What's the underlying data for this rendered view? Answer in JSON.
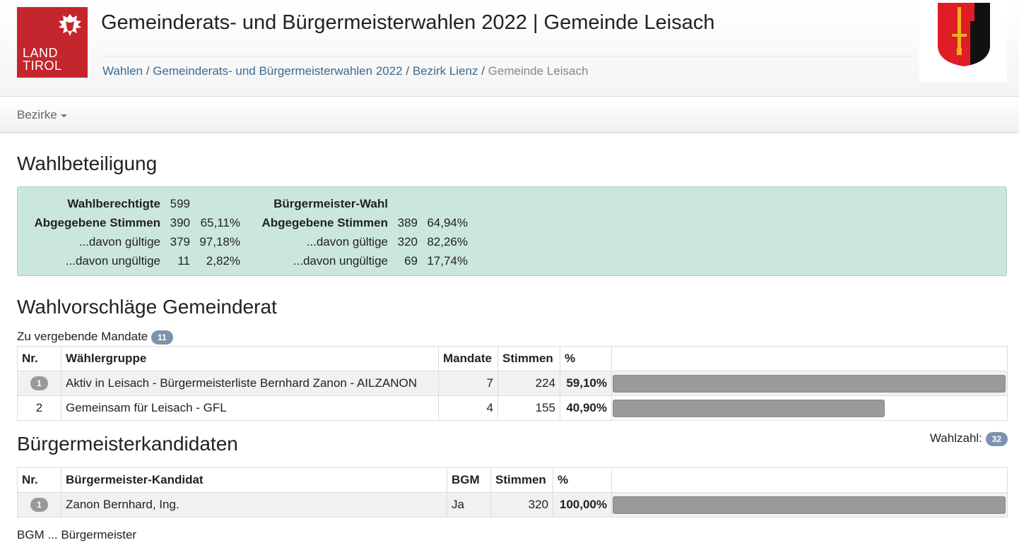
{
  "header": {
    "logo": [
      "LAND",
      "TIROL"
    ],
    "title": "Gemeinderats- und Bürgermeisterwahlen 2022 | Gemeinde Leisach",
    "breadcrumb": [
      "Wahlen",
      "Gemeinderats- und Bürgermeisterwahlen 2022",
      "Bezirk Lienz",
      "Gemeinde Leisach"
    ],
    "breadcrumb_separator": "/"
  },
  "nav": {
    "menu": "Bezirke"
  },
  "turnout": {
    "title": "Wahlbeteiligung",
    "council": [
      {
        "label": "Wahlberechtigte",
        "value": 599
      },
      {
        "label": "Abgegebene Stimmen",
        "value": 390,
        "percent": "65,11%"
      },
      {
        "label": "...davon gültige",
        "value": 379,
        "percent": "97,18%"
      },
      {
        "label": "...davon ungültige",
        "value": 11,
        "percent": "2,82%"
      }
    ],
    "mayor": {
      "title": "Bürgermeister-Wahl",
      "rows": [
        {
          "label": "Abgegebene Stimmen",
          "value": 389,
          "percent": "64,94%"
        },
        {
          "label": "...davon gültige",
          "value": 320,
          "percent": "82,26%"
        },
        {
          "label": "...davon ungültige",
          "value": 69,
          "percent": "17,74%"
        }
      ]
    }
  },
  "council": {
    "title": "Wahlvorschläge Gemeinderat",
    "mandates_label": "Zu vergebende Mandate",
    "mandates": 11,
    "columns": [
      "Nr.",
      "Wählergruppe",
      "Mandate",
      "Stimmen",
      "%"
    ],
    "rows": [
      {
        "nr": 1,
        "name": "Aktiv in Leisach - Bürgermeisterliste Bernhard Zanon - AILZANON",
        "mandates": 7,
        "votes": 224,
        "percent": 59.1,
        "percent_label": "59,10%"
      },
      {
        "nr": 2,
        "name": "Gemeinsam für Leisach - GFL",
        "mandates": 4,
        "votes": 155,
        "percent": 40.9,
        "percent_label": "40,90%"
      }
    ]
  },
  "mayor": {
    "title": "Bürgermeisterkandidaten",
    "quota_label": "Wahlzahl:",
    "quota": 32,
    "columns": [
      "Nr.",
      "Bürgermeister-Kandidat",
      "BGM",
      "Stimmen",
      "%"
    ],
    "rows": [
      {
        "nr": 1,
        "name": "Zanon Bernhard, Ing.",
        "bgm": "Ja",
        "votes": 320,
        "percent": 100,
        "percent_label": "100,00%"
      }
    ],
    "footnote": "BGM ... Bürgermeister"
  }
}
